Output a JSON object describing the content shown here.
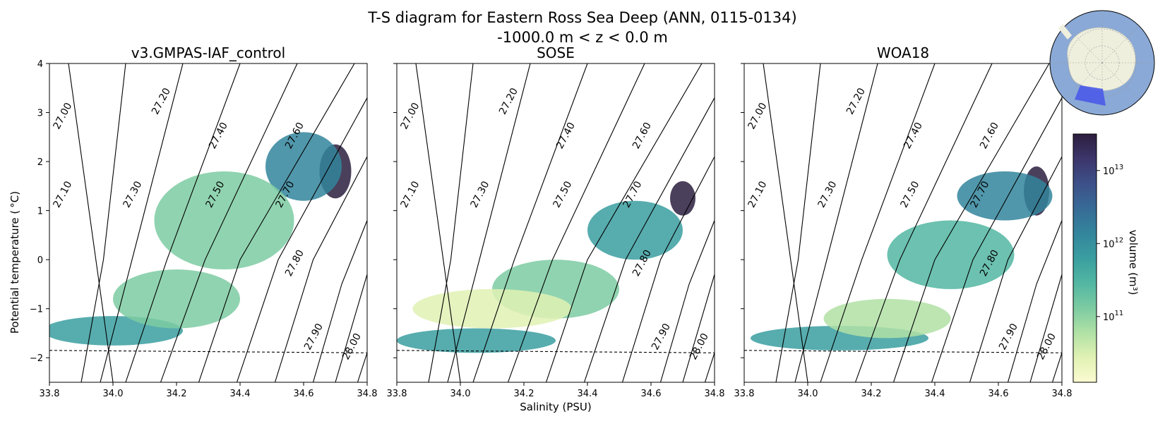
{
  "figure": {
    "title_line1": "T-S diagram for Eastern Ross Sea Deep (ANN, 0115-0134)",
    "title_line2": "-1000.0 m < z < 0.0 m",
    "xlabel": "Salinity (PSU)",
    "ylabel": "Potential temperature ( °C)",
    "colorbar_label": "volume (m³)"
  },
  "chart_data": {
    "type": "heatmap",
    "xlim": [
      33.8,
      34.8
    ],
    "ylim": [
      -2.5,
      4
    ],
    "x_ticks": [
      33.8,
      34.0,
      34.2,
      34.4,
      34.6,
      34.8
    ],
    "x_tick_labels": [
      "33.8",
      "34.0",
      "34.2",
      "34.4",
      "34.6",
      "34.8"
    ],
    "y_ticks": [
      -2,
      -1,
      0,
      1,
      2,
      3,
      4
    ],
    "y_tick_labels": [
      "−2",
      "−1",
      "0",
      "1",
      "2",
      "3",
      "4"
    ],
    "freezing_line": {
      "style": "dashed",
      "y_at_xmin": -1.85,
      "y_at_xmax": -1.9
    },
    "density_contours": [
      {
        "label": "27.00",
        "s_at_t": [
          [
            34.0,
            -2.5
          ],
          [
            33.86,
            4.0
          ]
        ],
        "label_at": [
          33.85,
          2.9
        ]
      },
      {
        "label": "27.10",
        "s_at_t": [
          [
            33.9,
            -2.5
          ],
          [
            33.97,
            0.0
          ],
          [
            34.04,
            4.0
          ]
        ],
        "label_at": [
          33.85,
          1.3
        ]
      },
      {
        "label": "27.20",
        "s_at_t": [
          [
            33.96,
            -2.5
          ],
          [
            34.06,
            0.0
          ],
          [
            34.22,
            4.0
          ]
        ],
        "label_at": [
          34.16,
          3.2
        ]
      },
      {
        "label": "27.30",
        "s_at_t": [
          [
            34.04,
            -2.5
          ],
          [
            34.17,
            0.0
          ],
          [
            34.4,
            4.0
          ]
        ],
        "label_at": [
          34.07,
          1.3
        ]
      },
      {
        "label": "27.40",
        "s_at_t": [
          [
            34.15,
            -2.5
          ],
          [
            34.29,
            0.0
          ],
          [
            34.58,
            4.0
          ]
        ],
        "label_at": [
          34.34,
          2.5
        ]
      },
      {
        "label": "27.50",
        "s_at_t": [
          [
            34.27,
            -2.5
          ],
          [
            34.4,
            0.0
          ],
          [
            34.76,
            4.0
          ]
        ],
        "label_at": [
          34.33,
          1.3
        ]
      },
      {
        "label": "27.60",
        "s_at_t": [
          [
            34.39,
            -2.5
          ],
          [
            34.52,
            0.0
          ],
          [
            34.8,
            3.3
          ]
        ],
        "label_at": [
          34.58,
          2.5
        ]
      },
      {
        "label": "27.70",
        "s_at_t": [
          [
            34.51,
            -2.5
          ],
          [
            34.63,
            0.0
          ],
          [
            34.8,
            2.1
          ]
        ],
        "label_at": [
          34.55,
          1.3
        ]
      },
      {
        "label": "27.80",
        "s_at_t": [
          [
            34.63,
            -2.5
          ],
          [
            34.72,
            -0.5
          ],
          [
            34.8,
            0.8
          ]
        ],
        "label_at": [
          34.58,
          -0.1
        ]
      },
      {
        "label": "27.90",
        "s_at_t": [
          [
            34.7,
            -2.5
          ],
          [
            34.8,
            -0.3
          ]
        ],
        "label_at": [
          34.64,
          -1.6
        ]
      },
      {
        "label": "28.00",
        "s_at_t": [
          [
            34.77,
            -2.5
          ],
          [
            34.8,
            -1.9
          ]
        ],
        "label_at": [
          34.76,
          -1.8
        ]
      }
    ],
    "panels": [
      {
        "title": "v3.GMPAS-IAF_control",
        "blobs": [
          {
            "s": 34.7,
            "t": 1.8,
            "rs": 0.05,
            "rt": 0.55,
            "level": 0.95
          },
          {
            "s": 34.6,
            "t": 1.9,
            "rs": 0.12,
            "rt": 0.7,
            "level": 0.55
          },
          {
            "s": 34.35,
            "t": 0.8,
            "rs": 0.22,
            "rt": 1.0,
            "level": 0.3
          },
          {
            "s": 34.0,
            "t": -1.45,
            "rs": 0.22,
            "rt": 0.3,
            "level": 0.5
          },
          {
            "s": 34.2,
            "t": -0.8,
            "rs": 0.2,
            "rt": 0.6,
            "level": 0.3
          }
        ]
      },
      {
        "title": "SOSE",
        "blobs": [
          {
            "s": 34.7,
            "t": 1.25,
            "rs": 0.04,
            "rt": 0.35,
            "level": 0.95
          },
          {
            "s": 34.55,
            "t": 0.6,
            "rs": 0.15,
            "rt": 0.6,
            "level": 0.45
          },
          {
            "s": 34.3,
            "t": -0.6,
            "rs": 0.2,
            "rt": 0.6,
            "level": 0.3
          },
          {
            "s": 34.05,
            "t": -1.65,
            "rs": 0.25,
            "rt": 0.25,
            "level": 0.45
          },
          {
            "s": 34.1,
            "t": -1.0,
            "rs": 0.25,
            "rt": 0.4,
            "level": 0.1
          }
        ]
      },
      {
        "title": "WOA18",
        "blobs": [
          {
            "s": 34.72,
            "t": 1.4,
            "rs": 0.04,
            "rt": 0.5,
            "level": 0.98
          },
          {
            "s": 34.62,
            "t": 1.3,
            "rs": 0.15,
            "rt": 0.5,
            "level": 0.55
          },
          {
            "s": 34.45,
            "t": 0.1,
            "rs": 0.2,
            "rt": 0.7,
            "level": 0.4
          },
          {
            "s": 34.1,
            "t": -1.6,
            "rs": 0.28,
            "rt": 0.25,
            "level": 0.5
          },
          {
            "s": 34.25,
            "t": -1.2,
            "rs": 0.2,
            "rt": 0.4,
            "level": 0.2
          }
        ]
      }
    ],
    "colorbar": {
      "scale": "log",
      "vmin_exp": 10.1,
      "vmax_exp": 13.5,
      "tick_exponents": [
        11,
        12,
        13
      ],
      "tick_labels": [
        "10^11",
        "10^12",
        "10^13"
      ],
      "colors": [
        "#fbfbd0",
        "#e1f1b4",
        "#b0e1a5",
        "#7ccba2",
        "#52b6a2",
        "#3a9ea0",
        "#33859c",
        "#376b96",
        "#3d5089",
        "#3c366b",
        "#2c1e3e"
      ]
    }
  },
  "inset_map": {
    "description_label": "Antarctica region map",
    "ocean_color": "#8aa9d6",
    "land_color": "#efefde",
    "region_color": "#4a5ae8"
  }
}
